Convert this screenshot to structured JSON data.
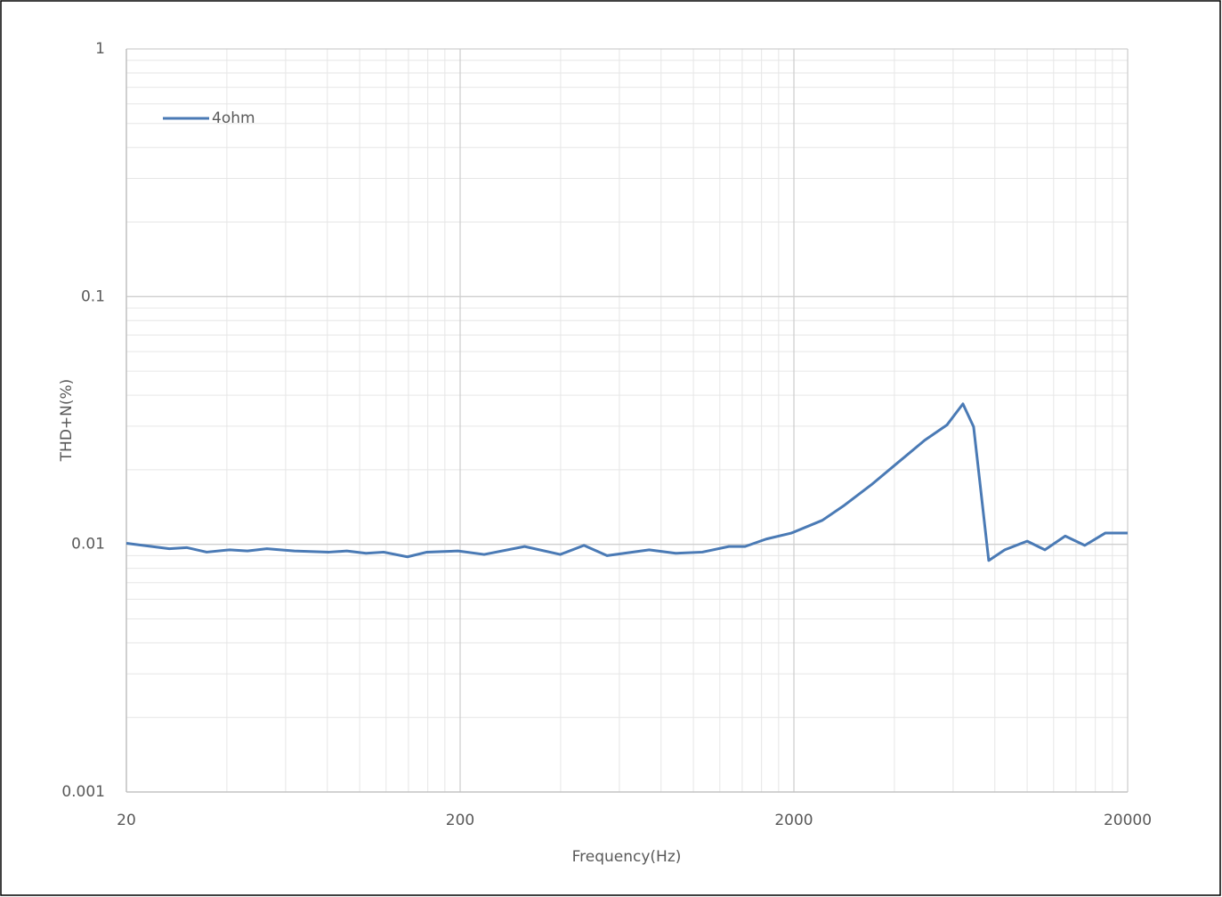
{
  "chart_data": {
    "type": "line",
    "x_label": "Frequency(Hz)",
    "y_label": "THD+N(%)",
    "x": [
      20,
      26.9,
      30.3,
      34.8,
      40.8,
      46.1,
      52.7,
      63.7,
      81,
      91.5,
      104.5,
      118,
      139,
      159,
      197,
      236,
      312,
      399,
      470,
      551,
      737,
      885,
      1063,
      1277,
      1428,
      1652,
      1964,
      2434,
      2838,
      3413,
      4102,
      4930,
      5745,
      6419,
      6910,
      7670,
      8565,
      9999,
      11300,
      13000,
      14880,
      17130,
      20000
    ],
    "series": [
      {
        "name": "4ohm",
        "color": "#4a7ab5",
        "values": [
          0.0101,
          0.0096,
          0.0097,
          0.0093,
          0.0095,
          0.0094,
          0.0096,
          0.0094,
          0.0093,
          0.0094,
          0.0092,
          0.0093,
          0.0089,
          0.0093,
          0.0094,
          0.0091,
          0.0098,
          0.0091,
          0.0099,
          0.009,
          0.0095,
          0.0092,
          0.0093,
          0.0098,
          0.0098,
          0.0105,
          0.0111,
          0.0125,
          0.0144,
          0.0174,
          0.0214,
          0.0263,
          0.0303,
          0.0369,
          0.0298,
          0.0086,
          0.0095,
          0.0103,
          0.0095,
          0.0108,
          0.0099,
          0.0111,
          0.0111
        ]
      }
    ],
    "xlim": [
      20,
      20000
    ],
    "xticks": [
      20,
      200,
      2000,
      20000
    ],
    "ylim": [
      0.001,
      1
    ],
    "yticks": [
      0.001,
      0.01,
      0.1,
      1
    ],
    "x_log": true,
    "y_log": true,
    "grid": true,
    "minor_grid": true,
    "legend": "upper left"
  }
}
